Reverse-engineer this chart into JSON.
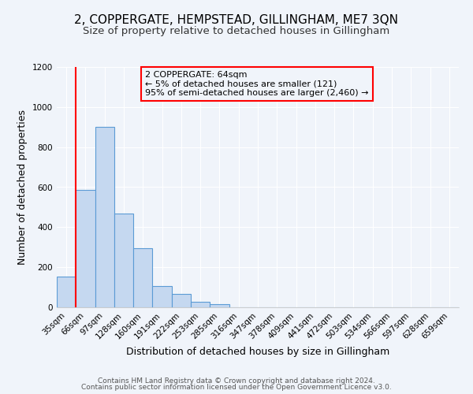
{
  "title": "2, COPPERGATE, HEMPSTEAD, GILLINGHAM, ME7 3QN",
  "subtitle": "Size of property relative to detached houses in Gillingham",
  "xlabel": "Distribution of detached houses by size in Gillingham",
  "ylabel": "Number of detached properties",
  "bar_labels": [
    "35sqm",
    "66sqm",
    "97sqm",
    "128sqm",
    "160sqm",
    "191sqm",
    "222sqm",
    "253sqm",
    "285sqm",
    "316sqm",
    "347sqm",
    "378sqm",
    "409sqm",
    "441sqm",
    "472sqm",
    "503sqm",
    "534sqm",
    "566sqm",
    "597sqm",
    "628sqm",
    "659sqm"
  ],
  "bar_values": [
    155,
    585,
    900,
    470,
    295,
    105,
    65,
    28,
    15,
    0,
    0,
    0,
    0,
    0,
    0,
    0,
    0,
    0,
    0,
    0,
    0
  ],
  "bar_color": "#c5d8f0",
  "bar_edge_color": "#5b9bd5",
  "ylim": [
    0,
    1200
  ],
  "yticks": [
    0,
    200,
    400,
    600,
    800,
    1000,
    1200
  ],
  "annotation_title": "2 COPPERGATE: 64sqm",
  "annotation_line1": "← 5% of detached houses are smaller (121)",
  "annotation_line2": "95% of semi-detached houses are larger (2,460) →",
  "footer_line1": "Contains HM Land Registry data © Crown copyright and database right 2024.",
  "footer_line2": "Contains public sector information licensed under the Open Government Licence v3.0.",
  "bg_color": "#f0f4fa",
  "grid_color": "#d8e4f0",
  "title_fontsize": 11,
  "subtitle_fontsize": 9.5,
  "axis_label_fontsize": 9,
  "tick_fontsize": 7.5,
  "annotation_fontsize": 8,
  "footer_fontsize": 6.5
}
